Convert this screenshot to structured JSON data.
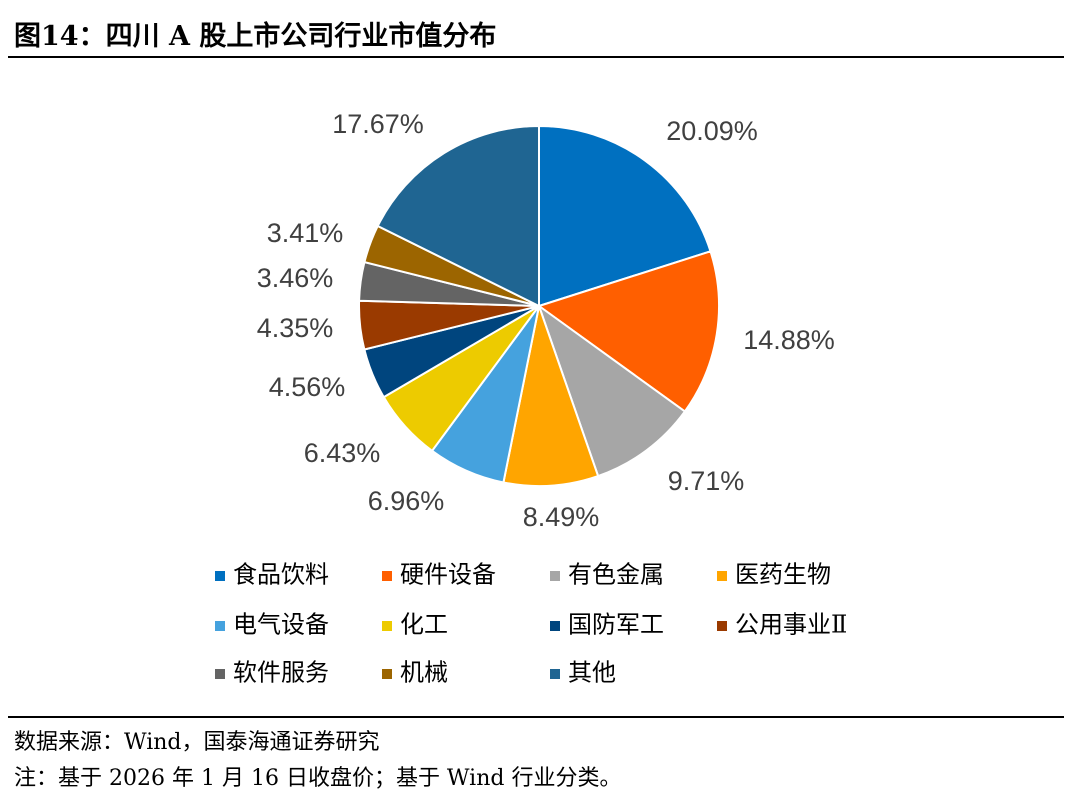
{
  "title": "图14：四川 A 股上市公司行业市值分布",
  "source": "数据来源：Wind，国泰海通证券研究",
  "note": "注：基于 2026 年 1 月 16 日收盘价；基于 Wind 行业分类。",
  "chart_data": {
    "type": "pie",
    "title": "",
    "start_angle_deg": 0,
    "direction": "clockwise",
    "legend_position": "bottom",
    "slices": [
      {
        "label": "食品饮料",
        "value": 20.09,
        "value_label": "20.09%",
        "color": "#0070C0"
      },
      {
        "label": "硬件设备",
        "value": 14.88,
        "value_label": "14.88%",
        "color": "#FF5F00"
      },
      {
        "label": "有色金属",
        "value": 9.71,
        "value_label": "9.71%",
        "color": "#A6A6A6"
      },
      {
        "label": "医药生物",
        "value": 8.49,
        "value_label": "8.49%",
        "color": "#FFA500"
      },
      {
        "label": "电气设备",
        "value": 6.96,
        "value_label": "6.96%",
        "color": "#45A2DE"
      },
      {
        "label": "化工",
        "value": 6.43,
        "value_label": "6.43%",
        "color": "#EDCB00"
      },
      {
        "label": "国防军工",
        "value": 4.56,
        "value_label": "4.56%",
        "color": "#00457E"
      },
      {
        "label": "公用事业Ⅱ",
        "value": 4.35,
        "value_label": "4.35%",
        "color": "#9A3A00"
      },
      {
        "label": "软件服务",
        "value": 3.46,
        "value_label": "3.46%",
        "color": "#646464"
      },
      {
        "label": "机械",
        "value": 3.41,
        "value_label": "3.41%",
        "color": "#9C6500"
      },
      {
        "label": "其他",
        "value": 17.67,
        "value_label": "17.67%",
        "color": "#1F6592"
      }
    ]
  }
}
